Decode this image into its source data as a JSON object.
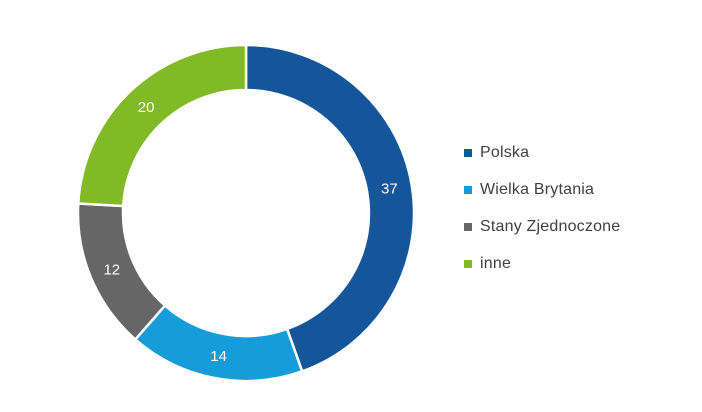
{
  "chart_data": {
    "type": "pie",
    "subtype": "donut",
    "title": "",
    "categories": [
      "Polska",
      "Wielka Brytania",
      "Stany Zjednoczone",
      "inne"
    ],
    "values": [
      37,
      14,
      12,
      20
    ],
    "colors": [
      "#15569B",
      "#189CD9",
      "#666666",
      "#81BA27"
    ],
    "data_labels": [
      "37",
      "14",
      "12",
      "20"
    ],
    "data_label_color": "#ffffff",
    "start_angle_deg": 0,
    "direction": "clockwise",
    "hole_ratio": 0.73,
    "legend_position": "right",
    "background_color": "#ffffff",
    "legend_text_color": "#404040"
  },
  "legend": {
    "items": [
      {
        "label": "Polska",
        "color": "#15569B"
      },
      {
        "label": "Wielka Brytania",
        "color": "#189CD9"
      },
      {
        "label": "Stany Zjednoczone",
        "color": "#666666"
      },
      {
        "label": "inne",
        "color": "#81BA27"
      }
    ]
  }
}
